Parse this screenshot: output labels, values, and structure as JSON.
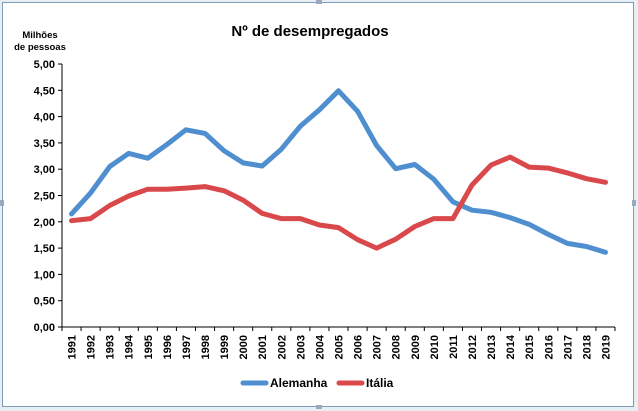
{
  "chart_data": {
    "type": "line",
    "title": "Nº de desempregados",
    "ylabel_line1": "Milhões",
    "ylabel_line2": "de pessoas",
    "xlabel": "",
    "ylim": [
      0,
      5
    ],
    "y_ticks": [
      "0,00",
      "0,50",
      "1,00",
      "1,50",
      "2,00",
      "2,50",
      "3,00",
      "3,50",
      "4,00",
      "4,50",
      "5,00"
    ],
    "grid": false,
    "legend_position": "bottom",
    "x": [
      1991,
      1992,
      1993,
      1994,
      1995,
      1996,
      1997,
      1998,
      1999,
      2000,
      2001,
      2002,
      2003,
      2004,
      2005,
      2006,
      2007,
      2008,
      2009,
      2010,
      2011,
      2012,
      2013,
      2014,
      2015,
      2016,
      2017,
      2018,
      2019
    ],
    "series": [
      {
        "name": "Alemanha",
        "color": "#4f8fd0",
        "values": [
          2.15,
          2.55,
          3.05,
          3.3,
          3.21,
          3.47,
          3.75,
          3.68,
          3.35,
          3.12,
          3.06,
          3.38,
          3.82,
          4.13,
          4.49,
          4.1,
          3.45,
          3.01,
          3.09,
          2.81,
          2.38,
          2.22,
          2.18,
          2.08,
          1.95,
          1.76,
          1.59,
          1.53,
          1.42
        ]
      },
      {
        "name": "Itália",
        "color": "#d9484a",
        "values": [
          2.02,
          2.06,
          2.31,
          2.49,
          2.62,
          2.62,
          2.64,
          2.67,
          2.59,
          2.41,
          2.16,
          2.06,
          2.06,
          1.94,
          1.89,
          1.66,
          1.5,
          1.67,
          1.91,
          2.06,
          2.06,
          2.7,
          3.08,
          3.23,
          3.04,
          3.02,
          2.93,
          2.82,
          2.75
        ]
      }
    ]
  }
}
